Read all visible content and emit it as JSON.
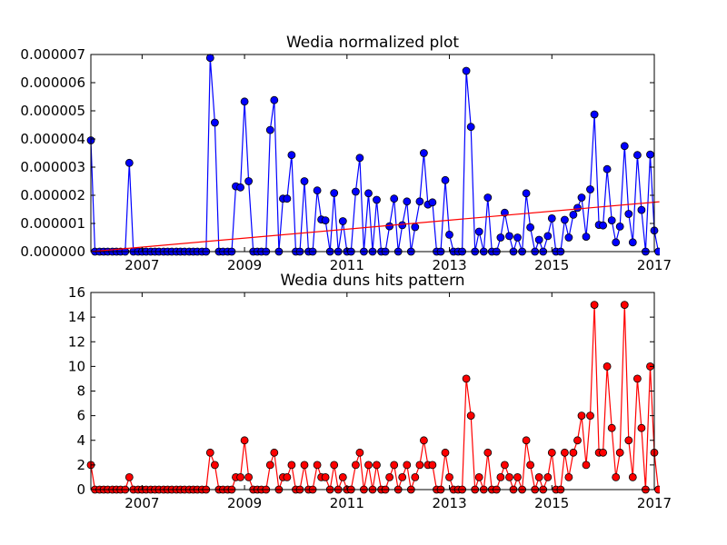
{
  "chart_data": [
    {
      "type": "line",
      "title": "Wedia normalized plot",
      "xlabel": "",
      "ylabel": "",
      "xlim": [
        2006.0,
        2017.0
      ],
      "ylim": [
        0,
        7e-06
      ],
      "xticks": [
        "2007",
        "2009",
        "2011",
        "2013",
        "2015",
        "2017"
      ],
      "xtick_values": [
        2007,
        2009,
        2011,
        2013,
        2015,
        2017
      ],
      "yticks": [
        "0.000000",
        "0.000001",
        "0.000002",
        "0.000003",
        "0.000004",
        "0.000005",
        "0.000006",
        "0.000007"
      ],
      "ytick_values": [
        0,
        1e-06,
        2e-06,
        3e-06,
        4e-06,
        5e-06,
        6e-06,
        7e-06
      ],
      "grid": false,
      "series": [
        {
          "color": "#0000ff",
          "marker": "circle",
          "x": [
            2006.0,
            2006.08,
            2006.17,
            2006.25,
            2006.33,
            2006.42,
            2006.5,
            2006.58,
            2006.67,
            2006.75,
            2006.83,
            2006.92,
            2007.0,
            2007.08,
            2007.17,
            2007.25,
            2007.33,
            2007.42,
            2007.5,
            2007.58,
            2007.67,
            2007.75,
            2007.83,
            2007.92,
            2008.0,
            2008.08,
            2008.17,
            2008.25,
            2008.33,
            2008.42,
            2008.5,
            2008.58,
            2008.67,
            2008.75,
            2008.83,
            2008.92,
            2009.0,
            2009.08,
            2009.17,
            2009.25,
            2009.33,
            2009.42,
            2009.5,
            2009.58,
            2009.67,
            2009.75,
            2009.83,
            2009.92,
            2010.0,
            2010.08,
            2010.17,
            2010.25,
            2010.33,
            2010.42,
            2010.5,
            2010.58,
            2010.67,
            2010.75,
            2010.83,
            2010.92,
            2011.0,
            2011.08,
            2011.17,
            2011.25,
            2011.33,
            2011.42,
            2011.5,
            2011.58,
            2011.67,
            2011.75,
            2011.83,
            2011.92,
            2012.0,
            2012.08,
            2012.17,
            2012.25,
            2012.33,
            2012.42,
            2012.5,
            2012.58,
            2012.67,
            2012.75,
            2012.83,
            2012.92,
            2013.0,
            2013.08,
            2013.17,
            2013.25,
            2013.33,
            2013.42,
            2013.5,
            2013.58,
            2013.67,
            2013.75,
            2013.83,
            2013.92,
            2014.0,
            2014.08,
            2014.17,
            2014.25,
            2014.33,
            2014.42,
            2014.5,
            2014.58,
            2014.67,
            2014.75,
            2014.83,
            2014.92,
            2015.0,
            2015.08,
            2015.17,
            2015.25,
            2015.33,
            2015.42,
            2015.5,
            2015.58,
            2015.67,
            2015.75,
            2015.83,
            2015.92,
            2016.0,
            2016.08,
            2016.17,
            2016.25,
            2016.33,
            2016.42,
            2016.5,
            2016.58,
            2016.67,
            2016.75,
            2016.83,
            2016.92,
            2017.0,
            2017.08
          ],
          "y": [
            3.95e-06,
            0,
            0,
            0,
            0,
            0,
            0,
            0,
            0,
            3.15e-06,
            0,
            0,
            0,
            0,
            0,
            0,
            0,
            0,
            0,
            0,
            0,
            0,
            0,
            0,
            0,
            0,
            0,
            0,
            6.88e-06,
            4.58e-06,
            0,
            0,
            0,
            0,
            2.32e-06,
            2.28e-06,
            5.33e-06,
            2.5e-06,
            0,
            0,
            0,
            0,
            4.32e-06,
            5.38e-06,
            0,
            1.88e-06,
            1.88e-06,
            3.43e-06,
            0,
            0,
            2.5e-06,
            0,
            0,
            2.17e-06,
            1.14e-06,
            1.11e-06,
            0,
            2.08e-06,
            0,
            1.08e-06,
            0,
            0,
            2.13e-06,
            3.33e-06,
            0,
            2.07e-06,
            0,
            1.84e-06,
            0,
            0,
            9e-07,
            1.88e-06,
            0,
            9.4e-07,
            1.78e-06,
            0,
            8.7e-07,
            1.78e-06,
            3.5e-06,
            1.67e-06,
            1.75e-06,
            0,
            0,
            2.54e-06,
            6e-07,
            0,
            0,
            0,
            6.42e-06,
            4.43e-06,
            0,
            7.1e-07,
            0,
            1.92e-06,
            0,
            0,
            5e-07,
            1.38e-06,
            5.5e-07,
            0,
            5e-07,
            0,
            2.07e-06,
            8.6e-07,
            0,
            4.2e-07,
            0,
            5.5e-07,
            1.18e-06,
            0,
            0,
            1.13e-06,
            5e-07,
            1.31e-06,
            1.55e-06,
            1.92e-06,
            5.3e-07,
            2.21e-06,
            4.87e-06,
            9.5e-07,
            9.3e-07,
            2.93e-06,
            1.11e-06,
            3.3e-07,
            8.9e-07,
            3.75e-06,
            1.34e-06,
            3.3e-07,
            3.43e-06,
            1.48e-06,
            0,
            3.45e-06,
            7.5e-07,
            0
          ]
        },
        {
          "color": "#ff0000",
          "marker": "none",
          "trend": true,
          "x": [
            2006.0,
            2017.1
          ],
          "y": [
            0,
            1.77e-06
          ]
        }
      ]
    },
    {
      "type": "line",
      "title": "Wedia duns hits pattern",
      "xlabel": "",
      "ylabel": "",
      "xlim": [
        2006.0,
        2017.0
      ],
      "ylim": [
        0,
        16
      ],
      "xticks": [
        "2007",
        "2009",
        "2011",
        "2013",
        "2015",
        "2017"
      ],
      "xtick_values": [
        2007,
        2009,
        2011,
        2013,
        2015,
        2017
      ],
      "yticks": [
        "0",
        "2",
        "4",
        "6",
        "8",
        "10",
        "12",
        "14",
        "16"
      ],
      "ytick_values": [
        0,
        2,
        4,
        6,
        8,
        10,
        12,
        14,
        16
      ],
      "grid": false,
      "series": [
        {
          "color": "#ff0000",
          "marker": "circle",
          "x": [
            2006.0,
            2006.08,
            2006.17,
            2006.25,
            2006.33,
            2006.42,
            2006.5,
            2006.58,
            2006.67,
            2006.75,
            2006.83,
            2006.92,
            2007.0,
            2007.08,
            2007.17,
            2007.25,
            2007.33,
            2007.42,
            2007.5,
            2007.58,
            2007.67,
            2007.75,
            2007.83,
            2007.92,
            2008.0,
            2008.08,
            2008.17,
            2008.25,
            2008.33,
            2008.42,
            2008.5,
            2008.58,
            2008.67,
            2008.75,
            2008.83,
            2008.92,
            2009.0,
            2009.08,
            2009.17,
            2009.25,
            2009.33,
            2009.42,
            2009.5,
            2009.58,
            2009.67,
            2009.75,
            2009.83,
            2009.92,
            2010.0,
            2010.08,
            2010.17,
            2010.25,
            2010.33,
            2010.42,
            2010.5,
            2010.58,
            2010.67,
            2010.75,
            2010.83,
            2010.92,
            2011.0,
            2011.08,
            2011.17,
            2011.25,
            2011.33,
            2011.42,
            2011.5,
            2011.58,
            2011.67,
            2011.75,
            2011.83,
            2011.92,
            2012.0,
            2012.08,
            2012.17,
            2012.25,
            2012.33,
            2012.42,
            2012.5,
            2012.58,
            2012.67,
            2012.75,
            2012.83,
            2012.92,
            2013.0,
            2013.08,
            2013.17,
            2013.25,
            2013.33,
            2013.42,
            2013.5,
            2013.58,
            2013.67,
            2013.75,
            2013.83,
            2013.92,
            2014.0,
            2014.08,
            2014.17,
            2014.25,
            2014.33,
            2014.42,
            2014.5,
            2014.58,
            2014.67,
            2014.75,
            2014.83,
            2014.92,
            2015.0,
            2015.08,
            2015.17,
            2015.25,
            2015.33,
            2015.42,
            2015.5,
            2015.58,
            2015.67,
            2015.75,
            2015.83,
            2015.92,
            2016.0,
            2016.08,
            2016.17,
            2016.25,
            2016.33,
            2016.42,
            2016.5,
            2016.58,
            2016.67,
            2016.75,
            2016.83,
            2016.92,
            2017.0,
            2017.08
          ],
          "y": [
            2,
            0,
            0,
            0,
            0,
            0,
            0,
            0,
            0,
            1,
            0,
            0,
            0,
            0,
            0,
            0,
            0,
            0,
            0,
            0,
            0,
            0,
            0,
            0,
            0,
            0,
            0,
            0,
            3,
            2,
            0,
            0,
            0,
            0,
            1,
            1,
            4,
            1,
            0,
            0,
            0,
            0,
            2,
            3,
            0,
            1,
            1,
            2,
            0,
            0,
            2,
            0,
            0,
            2,
            1,
            1,
            0,
            2,
            0,
            1,
            0,
            0,
            2,
            3,
            0,
            2,
            0,
            2,
            0,
            0,
            1,
            2,
            0,
            1,
            2,
            0,
            1,
            2,
            4,
            2,
            2,
            0,
            0,
            3,
            1,
            0,
            0,
            0,
            9,
            6,
            0,
            1,
            0,
            3,
            0,
            0,
            1,
            2,
            1,
            0,
            1,
            0,
            4,
            2,
            0,
            1,
            0,
            1,
            3,
            0,
            0,
            3,
            1,
            3,
            4,
            6,
            2,
            6,
            15,
            3,
            3,
            10,
            5,
            1,
            3,
            15,
            4,
            1,
            9,
            5,
            0,
            10,
            3,
            0
          ]
        }
      ]
    }
  ]
}
